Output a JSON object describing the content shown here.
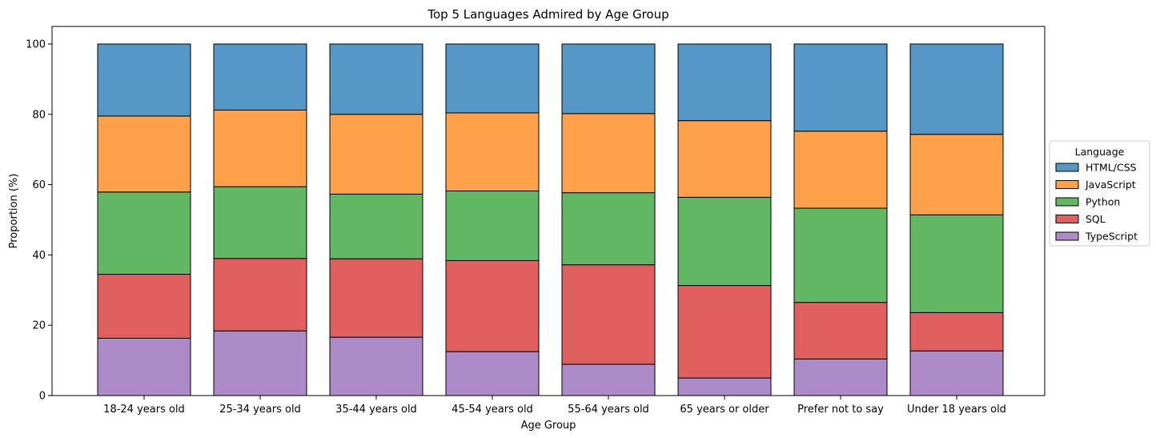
{
  "chart_data": {
    "type": "bar",
    "stacked": true,
    "title": "Top 5 Languages Admired by Age Group",
    "xlabel": "Age Group",
    "ylabel": "Proportion (%)",
    "ylim": [
      0,
      105
    ],
    "yticks": [
      "0",
      "20",
      "40",
      "60",
      "80",
      "100"
    ],
    "grid": false,
    "legend_title": "Language",
    "legend_position": "right",
    "categories": [
      "18-24 years old",
      "25-34 years old",
      "35-44 years old",
      "45-54 years old",
      "55-64 years old",
      "65 years or older",
      "Prefer not to say",
      "Under 18 years old"
    ],
    "series": [
      {
        "name": "TypeScript",
        "color": "#ad8bc9",
        "values": [
          16.3,
          18.4,
          16.6,
          12.5,
          8.9,
          5.0,
          10.4,
          12.7
        ]
      },
      {
        "name": "SQL",
        "color": "#e05f5f",
        "values": [
          18.2,
          20.6,
          22.3,
          25.9,
          28.3,
          26.3,
          16.1,
          10.9
        ]
      },
      {
        "name": "Python",
        "color": "#62b862",
        "values": [
          23.4,
          20.4,
          18.4,
          19.8,
          20.5,
          25.1,
          26.8,
          27.8
        ]
      },
      {
        "name": "JavaScript",
        "color": "#ffa04a",
        "values": [
          21.6,
          21.8,
          22.7,
          22.2,
          22.5,
          21.8,
          21.9,
          22.9
        ]
      },
      {
        "name": "HTML/CSS",
        "color": "#5598c7",
        "values": [
          20.5,
          18.8,
          20.0,
          19.6,
          19.8,
          21.8,
          24.8,
          25.7
        ]
      }
    ],
    "legend_order": [
      "HTML/CSS",
      "JavaScript",
      "Python",
      "SQL",
      "TypeScript"
    ]
  }
}
